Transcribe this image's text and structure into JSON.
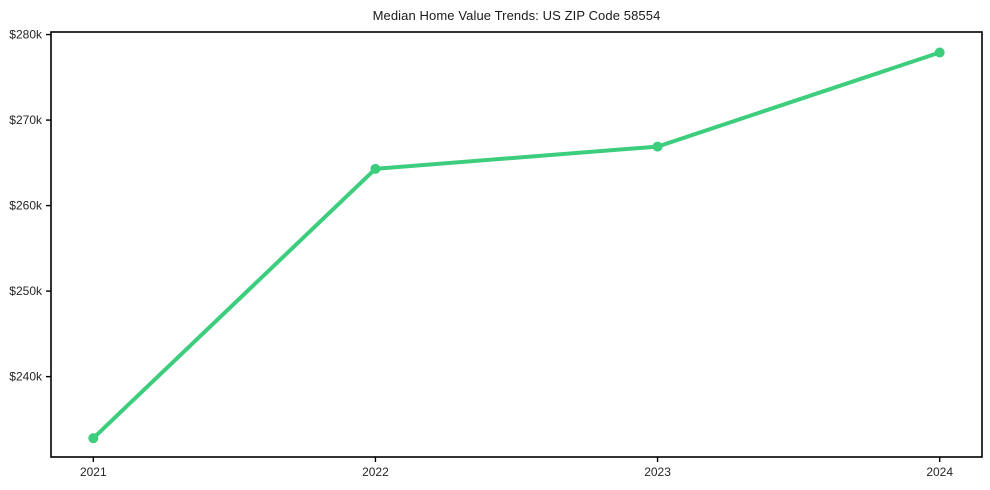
{
  "chart_data": {
    "type": "line",
    "title": "Median Home Value Trends: US ZIP Code 58554",
    "x": [
      2021,
      2022,
      2023,
      2024
    ],
    "x_tick_labels": [
      "2021",
      "2022",
      "2023",
      "2024"
    ],
    "series": [
      {
        "name": "median-home-value",
        "values": [
          232800,
          264300,
          266900,
          277900
        ],
        "color": "#3ccd7d",
        "line_width": 4,
        "marker": "circle",
        "marker_radius": 5
      }
    ],
    "y_ticks": [
      240000,
      250000,
      260000,
      270000,
      280000
    ],
    "y_tick_labels": [
      "$240k",
      "$250k",
      "$260k",
      "$270k",
      "$280k"
    ],
    "xlim": [
      2020.85,
      2024.15
    ],
    "ylim": [
      230600,
      280300
    ],
    "grid": false,
    "legend": false,
    "axis_color": "#000000",
    "tick_label_color": "#262626",
    "background_color": "#ffffff"
  }
}
